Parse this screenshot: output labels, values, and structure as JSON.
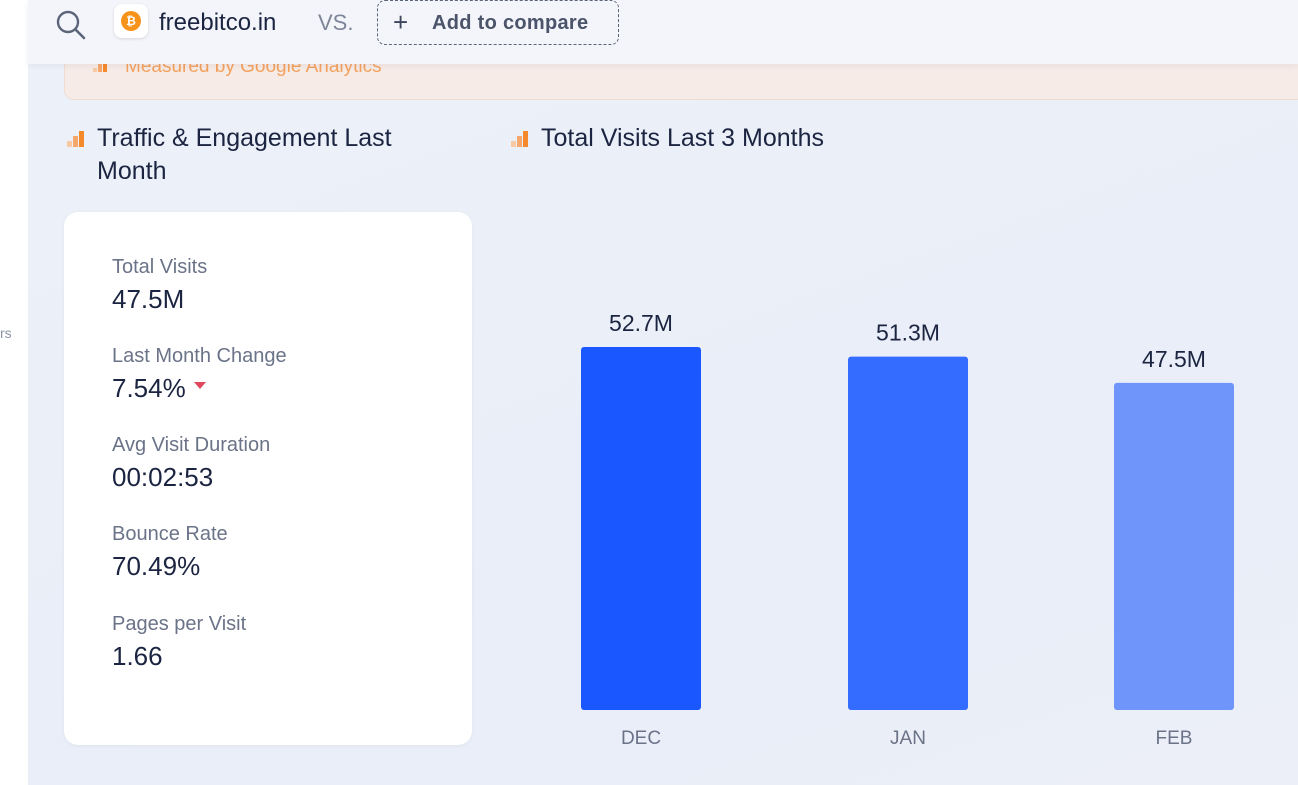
{
  "left_rail": {
    "fragment_text": "rs"
  },
  "header": {
    "site_name": "freebitco.in",
    "site_logo_glyph": "₿",
    "vs_label": "VS.",
    "compare_button": {
      "plus": "+",
      "label": "Add to compare"
    }
  },
  "banner": {
    "text": "Measured by Google Analytics"
  },
  "sections": {
    "left_title": "Traffic & Engagement Last Month",
    "right_title": "Total Visits Last 3 Months"
  },
  "stats": [
    {
      "label": "Total Visits",
      "value": "47.5M"
    },
    {
      "label": "Last Month Change",
      "value": "7.54%",
      "trend": "down"
    },
    {
      "label": "Avg Visit Duration",
      "value": "00:02:53"
    },
    {
      "label": "Bounce Rate",
      "value": "70.49%"
    },
    {
      "label": "Pages per Visit",
      "value": "1.66"
    }
  ],
  "colors": {
    "bar_dec": "#1a57ff",
    "bar_jan": "#336cff",
    "bar_feb": "#6f95fa",
    "trend_down": "#e0495f",
    "accent_orange": "#f58a2c"
  },
  "chart_data": {
    "type": "bar",
    "categories": [
      "DEC",
      "JAN",
      "FEB"
    ],
    "values": [
      52.7,
      51.3,
      47.5
    ],
    "data_labels": [
      "52.7M",
      "51.3M",
      "47.5M"
    ],
    "unit": "M",
    "title": "Total Visits Last 3 Months",
    "xlabel": "",
    "ylabel": "",
    "ylim": [
      0,
      52.7
    ],
    "grid": false,
    "legend": "none"
  }
}
